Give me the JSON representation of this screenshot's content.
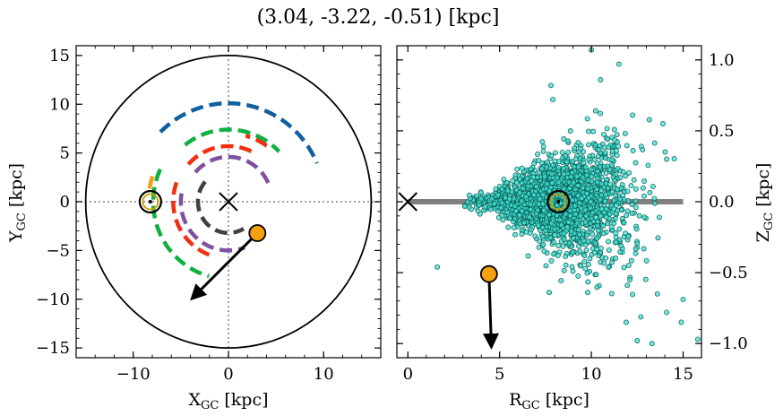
{
  "figure": {
    "title": "(3.04, -3.22, -0.51) [kpc]"
  },
  "chart_data": [
    {
      "type": "line",
      "panel": "left",
      "xlabel": "X",
      "xlabel_sub": "GC",
      "xlabel_unit": " [kpc]",
      "ylabel": "Y",
      "ylabel_sub": "GC",
      "ylabel_unit": " [kpc]",
      "xlim": [
        -16,
        16
      ],
      "ylim": [
        -16,
        16
      ],
      "xticks": [
        -10,
        0,
        10
      ],
      "yticks": [
        -15,
        -10,
        -5,
        0,
        5,
        10,
        15
      ],
      "xtick_labels": [
        "−10",
        "0",
        "10"
      ],
      "ytick_labels": [
        "−15",
        "−10",
        "−5",
        "0",
        "5",
        "10",
        "15"
      ],
      "boundary_circle_radius": 15,
      "reference_lines": {
        "x": 0,
        "y": 0,
        "style": "dotted"
      },
      "sun": {
        "x": -8.2,
        "y": 0
      },
      "galactic_center": {
        "x": 0,
        "y": 0
      },
      "spiral_arms": [
        {
          "color": "#1060a0",
          "radius": 10.1,
          "theta_deg": [
            135,
            23
          ]
        },
        {
          "color": "#10b040",
          "radius": 7.4,
          "theta_deg": [
            128,
            44
          ]
        },
        {
          "color": "#10b040",
          "radius": 7.9,
          "theta_deg": [
            155,
            255
          ]
        },
        {
          "color": "#f0a010",
          "radius": 8.4,
          "theta_deg": [
            162,
            172
          ]
        },
        {
          "color": "#f03010",
          "radius": 5.7,
          "theta_deg": [
            65,
            140
          ]
        },
        {
          "color": "#f03010",
          "radius": 5.8,
          "theta_deg": [
            160,
            250
          ]
        },
        {
          "color": "#f03010",
          "radius": 7.0,
          "theta_deg": [
            55,
            75
          ]
        },
        {
          "color": "#8050a0",
          "radius": 4.6,
          "theta_deg": [
            25,
            140
          ]
        },
        {
          "color": "#8050a0",
          "radius": 5.0,
          "theta_deg": [
            170,
            290
          ]
        },
        {
          "color": "#404040",
          "radius": 3.2,
          "theta_deg": [
            140,
            300
          ]
        }
      ],
      "star": {
        "x": 3.04,
        "y": -3.22,
        "color": "#f5a010"
      },
      "velocity_arrow": {
        "from": [
          3.04,
          -3.22
        ],
        "to": [
          -3.8,
          -9.9
        ]
      }
    },
    {
      "type": "scatter",
      "panel": "right",
      "xlabel": "R",
      "xlabel_sub": "GC",
      "xlabel_unit": " [kpc]",
      "ylabel": "Z",
      "ylabel_sub": "GC",
      "ylabel_unit": " [kpc]",
      "xlim": [
        -0.6,
        16
      ],
      "ylim": [
        -1.1,
        1.1
      ],
      "xticks": [
        0,
        5,
        10,
        15
      ],
      "yticks": [
        -1.0,
        -0.5,
        0.0,
        0.5,
        1.0
      ],
      "xtick_labels": [
        "0",
        "5",
        "10",
        "15"
      ],
      "ytick_labels": [
        "−1.0",
        "−0.5",
        "0.0",
        "0.5",
        "1.0"
      ],
      "disk_line": {
        "x": [
          0,
          15
        ],
        "z": 0,
        "color": "#808080"
      },
      "sun": {
        "R": 8.2,
        "Z": 0
      },
      "galactic_center": {
        "R": 0,
        "Z": 0
      },
      "sample_marker_color": "#40e0d0",
      "sample_description_count": 2000,
      "sample_outliers": [
        [
          10.0,
          1.07
        ],
        [
          11.5,
          0.97
        ],
        [
          7.8,
          0.82
        ],
        [
          10.5,
          0.86
        ],
        [
          7.9,
          0.72
        ],
        [
          13.9,
          0.55
        ],
        [
          14.1,
          0.3
        ],
        [
          1.6,
          -0.46
        ],
        [
          4.1,
          -0.52
        ],
        [
          7.7,
          -0.64
        ],
        [
          9.8,
          -0.64
        ],
        [
          15.0,
          -0.69
        ],
        [
          11.9,
          -0.85
        ],
        [
          14.1,
          -0.78
        ],
        [
          12.5,
          -0.98
        ],
        [
          13.3,
          -1.0
        ],
        [
          15.8,
          -0.97
        ],
        [
          14.9,
          -0.85
        ],
        [
          13.6,
          -0.65
        ],
        [
          12.1,
          -0.55
        ]
      ],
      "star": {
        "R": 4.42,
        "Z": -0.51,
        "color": "#f5a010"
      },
      "velocity_arrow": {
        "from": [
          4.42,
          -0.51
        ],
        "to": [
          4.55,
          -1.02
        ]
      }
    }
  ]
}
